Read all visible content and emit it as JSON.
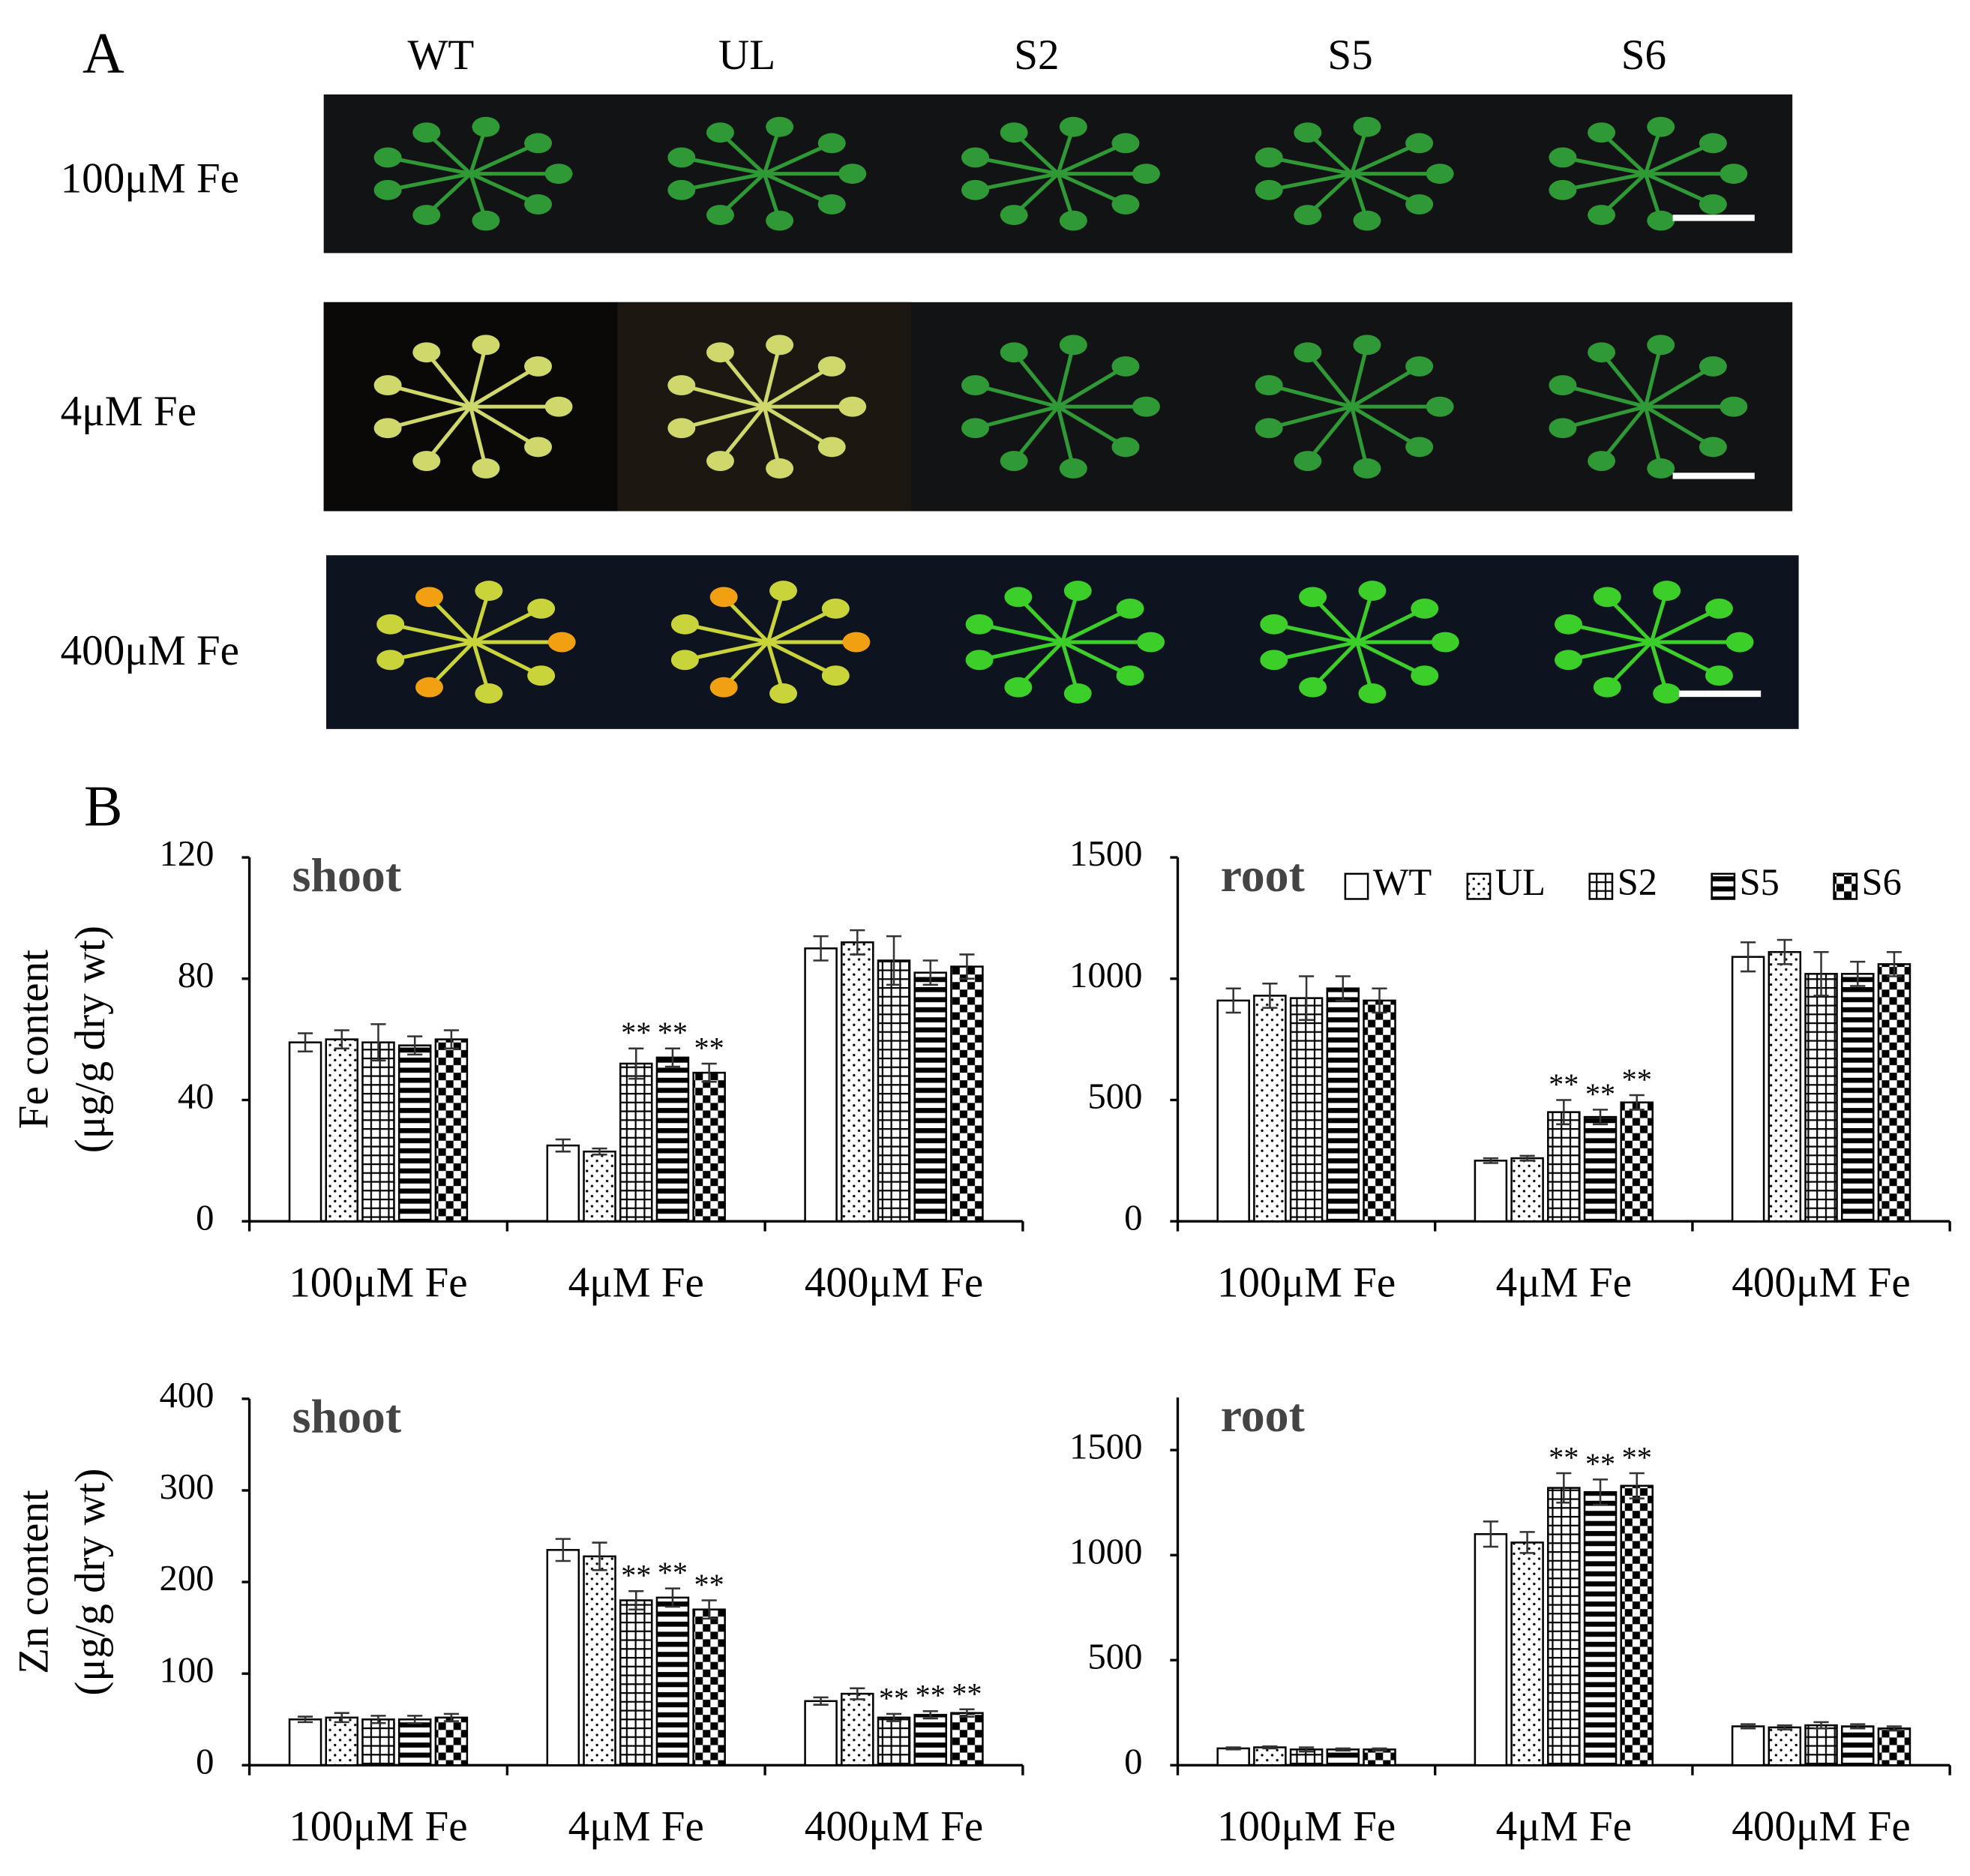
{
  "panel_a": {
    "label": "A",
    "columns": [
      "WT",
      "UL",
      "S2",
      "S5",
      "S6"
    ],
    "rows": [
      "100μM Fe",
      "4μM Fe",
      "400μM Fe"
    ]
  },
  "panel_b": {
    "label": "B"
  },
  "chart_data": [
    {
      "type": "bar",
      "title": "shoot",
      "y_label": [
        "Fe content",
        "(μg/g dry wt)"
      ],
      "categories": [
        "100μM Fe",
        "4μM Fe",
        "400μM Fe"
      ],
      "ylim": [
        0,
        120
      ],
      "yticks": [
        0,
        40,
        80,
        120
      ],
      "grid": false,
      "series": [
        {
          "name": "WT",
          "color": "#000000",
          "pattern": "none",
          "values": [
            59,
            25,
            90
          ],
          "errors": [
            3,
            2,
            4
          ],
          "annotations": [
            null,
            null,
            null
          ]
        },
        {
          "name": "UL",
          "color": "#000000",
          "pattern": "dots",
          "values": [
            60,
            23,
            92
          ],
          "errors": [
            3,
            1,
            4
          ],
          "annotations": [
            null,
            null,
            null
          ]
        },
        {
          "name": "S2",
          "color": "#000000",
          "pattern": "grid",
          "values": [
            59,
            52,
            86
          ],
          "errors": [
            6,
            5,
            8
          ],
          "annotations": [
            null,
            "**",
            null
          ]
        },
        {
          "name": "S5",
          "color": "#000000",
          "pattern": "hlines",
          "values": [
            58,
            54,
            82
          ],
          "errors": [
            3,
            3,
            4
          ],
          "annotations": [
            null,
            "**",
            null
          ]
        },
        {
          "name": "S6",
          "color": "#000000",
          "pattern": "checker",
          "values": [
            60,
            49,
            84
          ],
          "errors": [
            3,
            3,
            4
          ],
          "annotations": [
            null,
            "**",
            null
          ]
        }
      ]
    },
    {
      "type": "bar",
      "title": "root",
      "legend": "top-right",
      "categories": [
        "100μM Fe",
        "4μM Fe",
        "400μM Fe"
      ],
      "ylim": [
        0,
        1500
      ],
      "yticks": [
        0,
        500,
        1000,
        1500
      ],
      "grid": false,
      "series": [
        {
          "name": "WT",
          "color": "#000000",
          "pattern": "none",
          "values": [
            910,
            250,
            1090
          ],
          "errors": [
            50,
            10,
            60
          ],
          "annotations": [
            null,
            null,
            null
          ]
        },
        {
          "name": "UL",
          "color": "#000000",
          "pattern": "dots",
          "values": [
            930,
            260,
            1110
          ],
          "errors": [
            50,
            10,
            50
          ],
          "annotations": [
            null,
            null,
            null
          ]
        },
        {
          "name": "S2",
          "color": "#000000",
          "pattern": "grid",
          "values": [
            920,
            450,
            1020
          ],
          "errors": [
            90,
            50,
            90
          ],
          "annotations": [
            null,
            "**",
            null
          ]
        },
        {
          "name": "S5",
          "color": "#000000",
          "pattern": "hlines",
          "values": [
            960,
            430,
            1020
          ],
          "errors": [
            50,
            30,
            50
          ],
          "annotations": [
            null,
            "**",
            null
          ]
        },
        {
          "name": "S6",
          "color": "#000000",
          "pattern": "checker",
          "values": [
            910,
            490,
            1060
          ],
          "errors": [
            50,
            30,
            50
          ],
          "annotations": [
            null,
            "**",
            null
          ]
        }
      ]
    },
    {
      "type": "bar",
      "title": "shoot",
      "y_label": [
        "Zn content",
        "(μg/g dry wt)"
      ],
      "categories": [
        "100μM Fe",
        "4μM Fe",
        "400μM Fe"
      ],
      "ylim": [
        0,
        400
      ],
      "yticks": [
        0,
        100,
        200,
        300,
        400
      ],
      "grid": false,
      "series": [
        {
          "name": "WT",
          "color": "#000000",
          "pattern": "none",
          "values": [
            50,
            235,
            70
          ],
          "errors": [
            3,
            12,
            4
          ],
          "annotations": [
            null,
            null,
            null
          ]
        },
        {
          "name": "UL",
          "color": "#000000",
          "pattern": "dots",
          "values": [
            52,
            228,
            78
          ],
          "errors": [
            5,
            15,
            6
          ],
          "annotations": [
            null,
            null,
            null
          ]
        },
        {
          "name": "S2",
          "color": "#000000",
          "pattern": "grid",
          "values": [
            50,
            180,
            52
          ],
          "errors": [
            4,
            10,
            4
          ],
          "annotations": [
            null,
            "**",
            "**"
          ]
        },
        {
          "name": "S5",
          "color": "#000000",
          "pattern": "hlines",
          "values": [
            50,
            183,
            55
          ],
          "errors": [
            4,
            10,
            4
          ],
          "annotations": [
            null,
            "**",
            "**"
          ]
        },
        {
          "name": "S6",
          "color": "#000000",
          "pattern": "checker",
          "values": [
            52,
            170,
            57
          ],
          "errors": [
            4,
            10,
            4
          ],
          "annotations": [
            null,
            "**",
            "**"
          ]
        }
      ]
    },
    {
      "type": "bar",
      "title": "root",
      "categories": [
        "100μM Fe",
        "4μM Fe",
        "400μM Fe"
      ],
      "ylim": [
        0,
        1750
      ],
      "yticks": [
        0,
        500,
        1000,
        1500
      ],
      "grid": false,
      "series": [
        {
          "name": "WT",
          "color": "#000000",
          "pattern": "none",
          "values": [
            80,
            1100,
            185
          ],
          "errors": [
            5,
            60,
            10
          ],
          "annotations": [
            null,
            null,
            null
          ]
        },
        {
          "name": "UL",
          "color": "#000000",
          "pattern": "dots",
          "values": [
            85,
            1060,
            180
          ],
          "errors": [
            5,
            50,
            10
          ],
          "annotations": [
            null,
            null,
            null
          ]
        },
        {
          "name": "S2",
          "color": "#000000",
          "pattern": "grid",
          "values": [
            75,
            1320,
            190
          ],
          "errors": [
            10,
            70,
            15
          ],
          "annotations": [
            null,
            "**",
            null
          ]
        },
        {
          "name": "S5",
          "color": "#000000",
          "pattern": "hlines",
          "values": [
            75,
            1300,
            185
          ],
          "errors": [
            5,
            60,
            10
          ],
          "annotations": [
            null,
            "**",
            null
          ]
        },
        {
          "name": "S6",
          "color": "#000000",
          "pattern": "checker",
          "values": [
            75,
            1330,
            175
          ],
          "errors": [
            5,
            60,
            10
          ],
          "annotations": [
            null,
            "**",
            null
          ]
        }
      ]
    }
  ]
}
